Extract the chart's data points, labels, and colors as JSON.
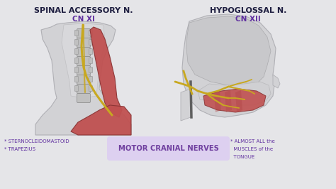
{
  "bg_color": "#e5e5e8",
  "title_left": "SPINAL ACCESSORY N.",
  "subtitle_left": "CN XI",
  "title_right": "HYPOGLOSSAL N.",
  "subtitle_right": "CN XII",
  "center_box_color": "#ddd0f0",
  "center_text": "MOTOR CRANIAL NERVES",
  "center_text_color": "#7040a0",
  "label_left_1": "* STERNOCLEIDOMASTOID",
  "label_left_2": "* TRAPEZIUS",
  "label_right_1": "* ALMOST ALL the",
  "label_right_2": "  MUSCLES of the",
  "label_right_3": "  TONGUE",
  "title_color": "#1e1e40",
  "subtitle_color": "#6030a0",
  "label_color": "#6030a0",
  "muscle_color": "#c05050",
  "nerve_color": "#c8a820",
  "skin_color": "#d2d2d5",
  "skin_edge_color": "#b0b0b5",
  "spine_color": "#c0c0c0",
  "spine_edge_color": "#909090"
}
